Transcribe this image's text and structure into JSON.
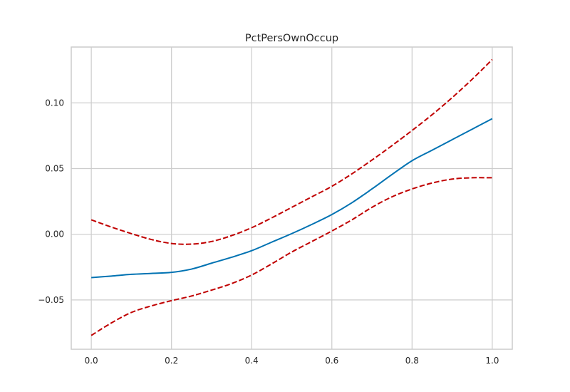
{
  "chart_data": {
    "type": "line",
    "title": "PctPersOwnOccup",
    "xlabel": "",
    "ylabel": "",
    "xlim": [
      -0.05,
      1.05
    ],
    "ylim": [
      -0.0875,
      0.1425
    ],
    "grid": true,
    "xticks": [
      0.0,
      0.2,
      0.4,
      0.6,
      0.8,
      1.0
    ],
    "xtick_labels": [
      "0.0",
      "0.2",
      "0.4",
      "0.6",
      "0.8",
      "1.0"
    ],
    "yticks": [
      -0.05,
      0.0,
      0.05,
      0.1
    ],
    "ytick_labels": [
      "−0.05",
      "0.00",
      "0.05",
      "0.10"
    ],
    "series": [
      {
        "role": "estimate",
        "color": "#0072b2",
        "style": "solid",
        "x": [
          0.0,
          0.05,
          0.1,
          0.15,
          0.2,
          0.25,
          0.3,
          0.35,
          0.4,
          0.45,
          0.5,
          0.55,
          0.6,
          0.65,
          0.7,
          0.75,
          0.8,
          0.85,
          0.9,
          0.95,
          1.0
        ],
        "y": [
          -0.033,
          -0.0318,
          -0.0305,
          -0.0298,
          -0.029,
          -0.0265,
          -0.022,
          -0.0175,
          -0.0125,
          -0.006,
          0.0005,
          0.0075,
          0.015,
          0.024,
          0.0345,
          0.0455,
          0.056,
          0.064,
          0.072,
          0.08,
          0.088
        ]
      },
      {
        "role": "upper-confidence",
        "color": "#c00000",
        "style": "dashed",
        "x": [
          0.0,
          0.05,
          0.1,
          0.15,
          0.2,
          0.25,
          0.3,
          0.35,
          0.4,
          0.45,
          0.5,
          0.55,
          0.6,
          0.65,
          0.7,
          0.75,
          0.8,
          0.85,
          0.9,
          0.95,
          1.0
        ],
        "y": [
          0.011,
          0.0055,
          0.0005,
          -0.004,
          -0.007,
          -0.0075,
          -0.0055,
          -0.001,
          0.005,
          0.0125,
          0.0205,
          0.0285,
          0.0365,
          0.046,
          0.0565,
          0.0675,
          0.079,
          0.091,
          0.104,
          0.118,
          0.133
        ]
      },
      {
        "role": "lower-confidence",
        "color": "#c00000",
        "style": "dashed",
        "x": [
          0.0,
          0.05,
          0.1,
          0.15,
          0.2,
          0.25,
          0.3,
          0.35,
          0.4,
          0.45,
          0.5,
          0.55,
          0.6,
          0.65,
          0.7,
          0.75,
          0.8,
          0.85,
          0.9,
          0.95,
          1.0
        ],
        "y": [
          -0.077,
          -0.0675,
          -0.0595,
          -0.0545,
          -0.0505,
          -0.047,
          -0.0425,
          -0.0375,
          -0.031,
          -0.0225,
          -0.0135,
          -0.0055,
          0.0025,
          0.011,
          0.0205,
          0.0285,
          0.0345,
          0.039,
          0.042,
          0.043,
          0.043
        ]
      }
    ]
  }
}
